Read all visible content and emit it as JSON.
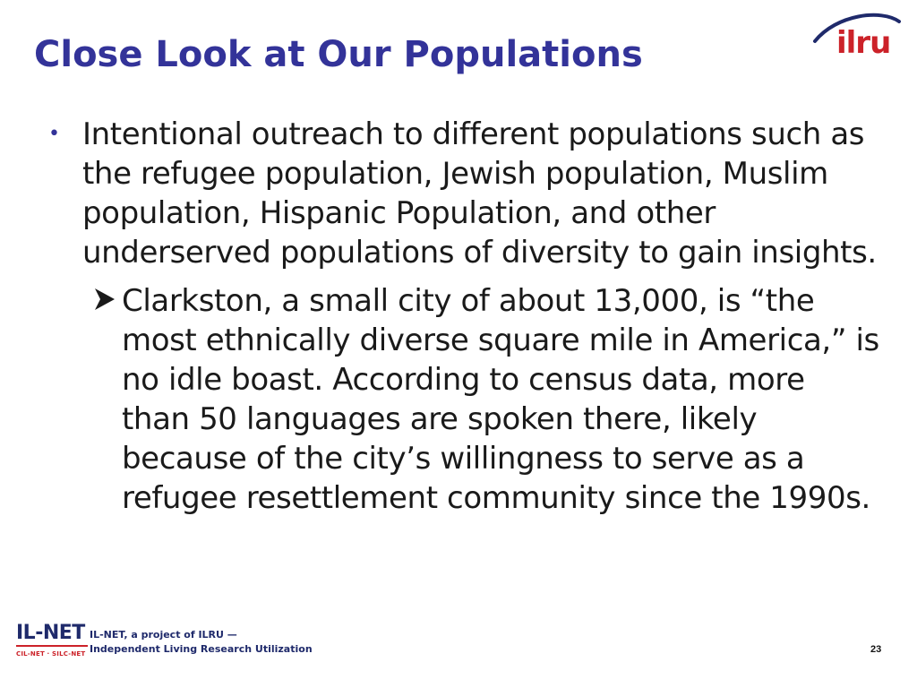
{
  "slide": {
    "title": "Close Look at Our Populations",
    "bullets": [
      {
        "text": "Intentional outreach to different populations such as the refugee population, Jewish population, Muslim population, Hispanic Population, and other underserved populations of diversity to gain insights.",
        "sub": [
          {
            "text": "Clarkston, a small city of about 13,000, is “the most ethnically diverse square mile in America,” is no idle boast. According to census data, more than 50 languages are spoken there, likely because of the city’s willingness to serve as a refugee resettlement community since the 1990s."
          }
        ]
      }
    ],
    "page_number": "23"
  },
  "branding": {
    "ilru_logo": "ilru",
    "ilnet_logo": "IL-NET",
    "ilnet_sub": "CIL-NET · SILC-NET",
    "footer_line1": "IL-NET, a project of ILRU —",
    "footer_line2": "Independent Living Research Utilization"
  },
  "colors": {
    "title": "#333399",
    "brand_red": "#cc2229",
    "brand_navy": "#1f2a6b"
  },
  "icons": {
    "bullet": "bullet-dot-icon",
    "sub_bullet": "arrow-right-icon"
  }
}
